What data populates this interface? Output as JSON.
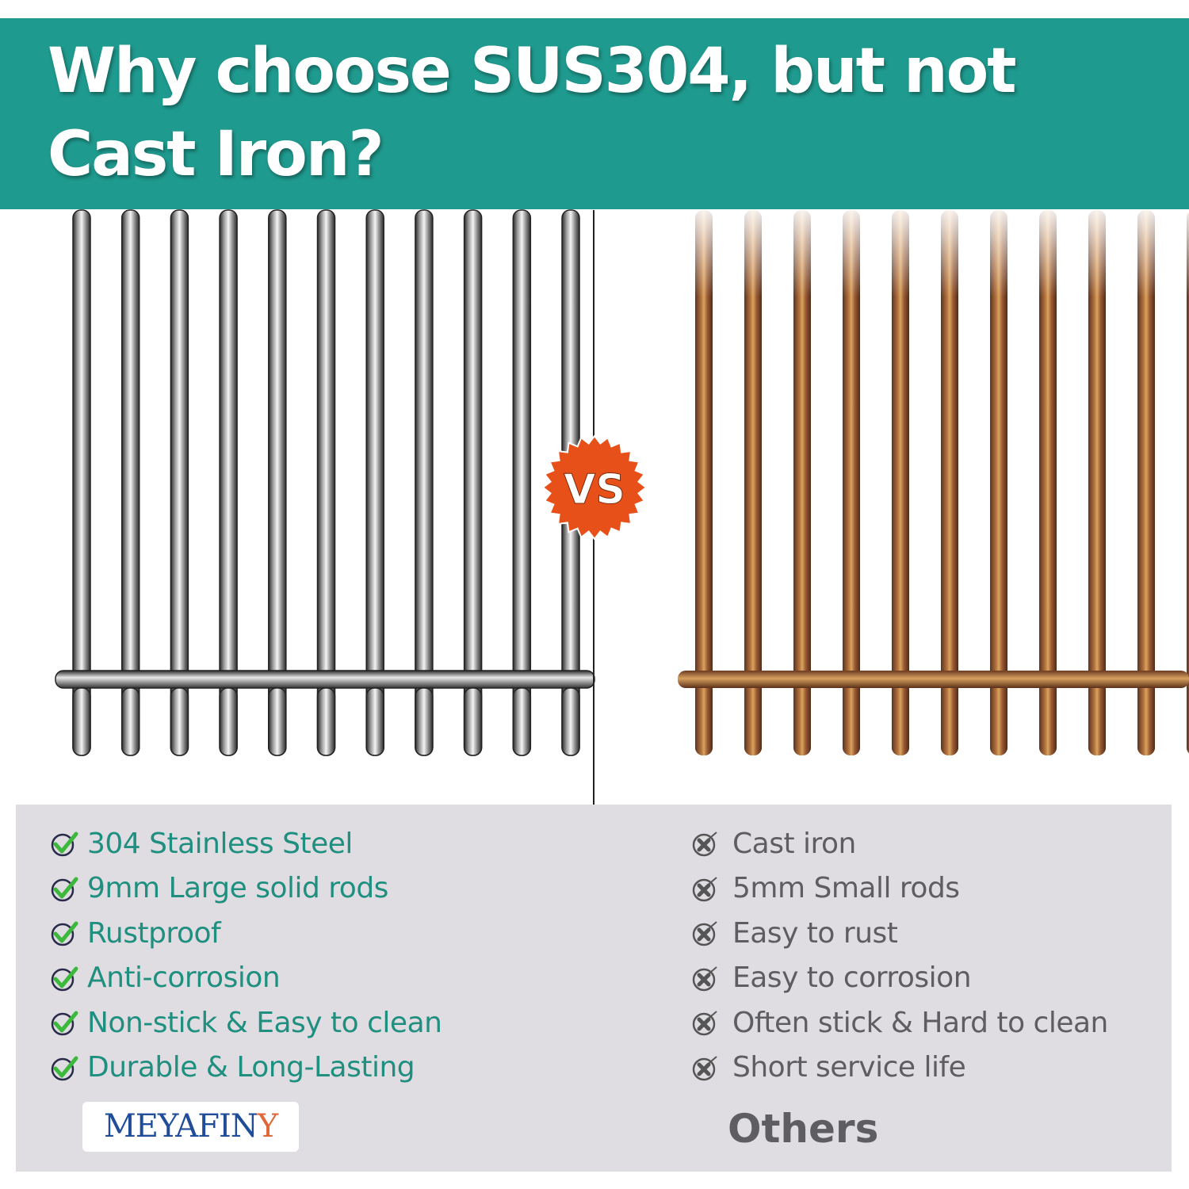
{
  "header": {
    "title_line1": "Why choose SUS304, but not",
    "title_line2": "Cast Iron?"
  },
  "badge": {
    "label": "VS",
    "color": "#e8501a"
  },
  "pros": {
    "icon": "check-circle-icon",
    "items": [
      "304 Stainless Steel",
      "9mm Large solid rods",
      "Rustproof",
      "Anti-corrosion",
      "Non-stick & Easy to clean",
      "Durable & Long-Lasting"
    ],
    "color": "#1f8f80"
  },
  "cons": {
    "icon": "x-circle-icon",
    "items": [
      "Cast iron",
      "5mm Small rods",
      "Easy to rust",
      "Easy to corrosion",
      "Often stick & Hard to clean",
      "Short service life"
    ],
    "color": "#5e5e62"
  },
  "brand": {
    "logo_main": "MEYAFIN",
    "logo_last": "Y"
  },
  "others_label": "Others",
  "colors": {
    "header": "#1f9a8e",
    "panel": "#dfdde2",
    "rust": "#a0603a"
  }
}
